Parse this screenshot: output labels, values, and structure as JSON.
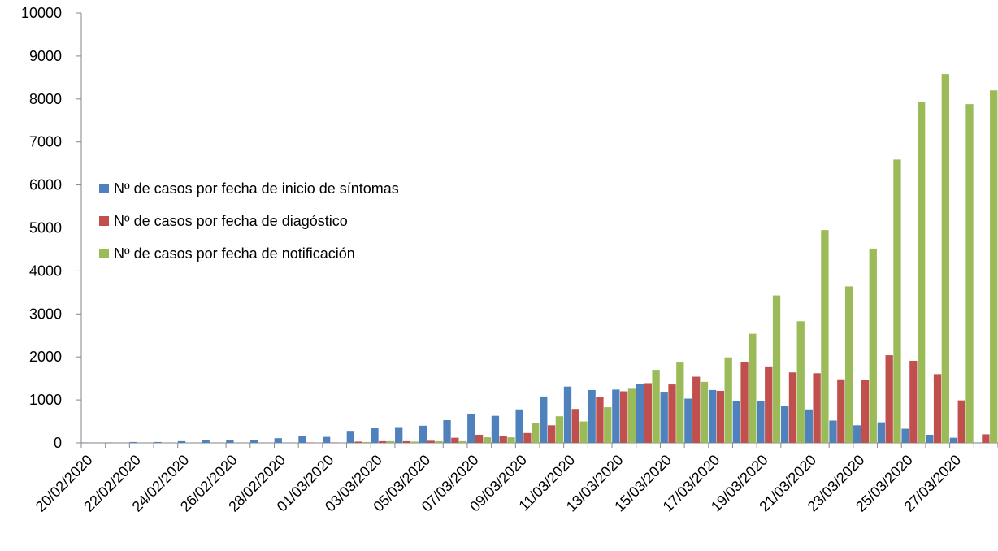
{
  "chart_data": {
    "type": "bar",
    "categories": [
      "20/02/2020",
      null,
      "22/02/2020",
      null,
      "24/02/2020",
      null,
      "26/02/2020",
      null,
      "28/02/2020",
      null,
      "01/03/2020",
      null,
      "03/03/2020",
      null,
      "05/03/2020",
      null,
      "07/03/2020",
      null,
      "09/03/2020",
      null,
      "11/03/2020",
      null,
      "13/03/2020",
      null,
      "15/03/2020",
      null,
      "17/03/2020",
      null,
      "19/03/2020",
      null,
      "21/03/2020",
      null,
      "23/03/2020",
      null,
      "25/03/2020",
      null,
      "27/03/2020",
      null
    ],
    "series": [
      {
        "name": "Nº de casos por fecha de inicio de síntomas",
        "color": "#4f81bd",
        "values": [
          10,
          10,
          20,
          20,
          40,
          70,
          70,
          60,
          110,
          170,
          140,
          280,
          340,
          350,
          400,
          530,
          670,
          630,
          780,
          1080,
          1310,
          1230,
          1240,
          1380,
          1190,
          1030,
          1230,
          980,
          980,
          850,
          780,
          520,
          410,
          480,
          330,
          190,
          120,
          10
        ]
      },
      {
        "name": "Nº de casos por fecha de diagóstico",
        "color": "#c0504d",
        "values": [
          0,
          0,
          0,
          0,
          0,
          0,
          0,
          0,
          0,
          10,
          10,
          30,
          40,
          40,
          50,
          120,
          190,
          170,
          230,
          410,
          790,
          1070,
          1200,
          1390,
          1360,
          1540,
          1210,
          1890,
          1780,
          1640,
          1620,
          1480,
          1470,
          2040,
          1910,
          1600,
          990,
          200
        ]
      },
      {
        "name": "Nº de casos por fecha de notificación",
        "color": "#9bbb59",
        "values": [
          0,
          0,
          0,
          0,
          0,
          0,
          0,
          0,
          0,
          0,
          0,
          20,
          40,
          30,
          40,
          40,
          130,
          130,
          470,
          620,
          500,
          830,
          1260,
          1700,
          1870,
          1420,
          1990,
          2540,
          3430,
          2830,
          4950,
          3640,
          4520,
          6590,
          7940,
          8580,
          7880,
          8200
        ]
      }
    ],
    "ylim": [
      0,
      10000
    ],
    "yticks": [
      0,
      1000,
      2000,
      3000,
      4000,
      5000,
      6000,
      7000,
      8000,
      9000,
      10000
    ],
    "grid": false,
    "legend": "left"
  }
}
